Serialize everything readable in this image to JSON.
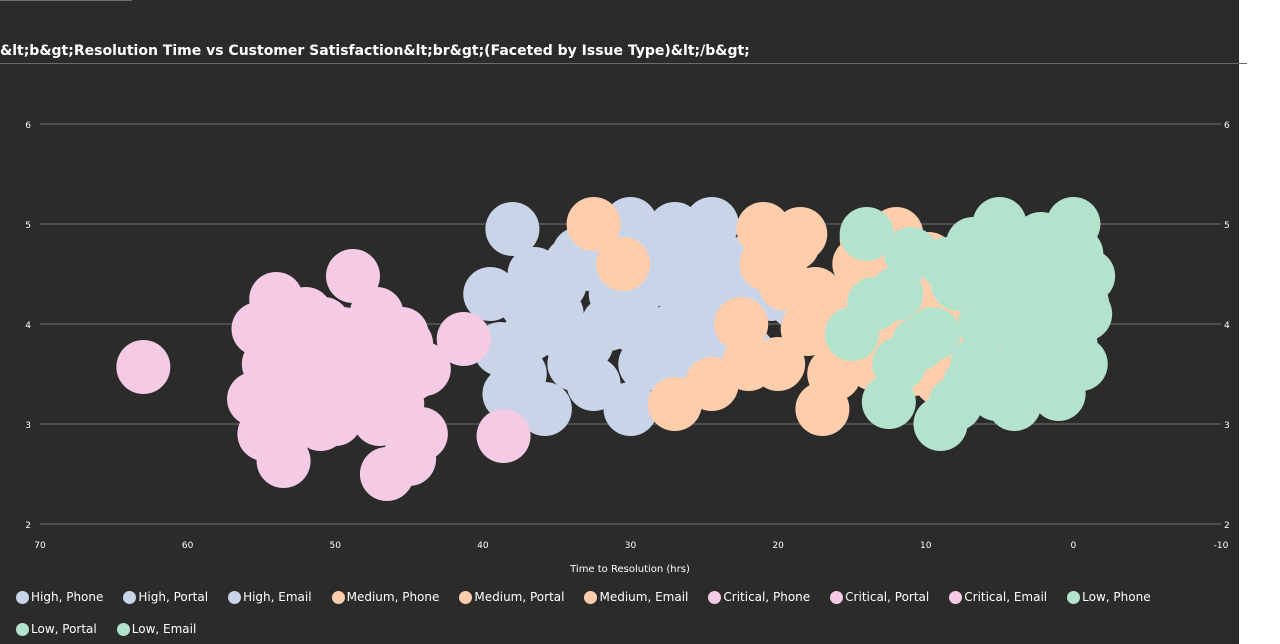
{
  "chart_data": {
    "type": "scatter",
    "title": "&lt;b&gt;Resolution Time vs Customer Satisfaction&lt;br&gt;(Faceted by Issue Type)&lt;/b&gt;",
    "xlabel": "Time to Resolution (hrs)",
    "ylabel": "",
    "xlim": [
      70,
      -10
    ],
    "ylim": [
      2,
      6
    ],
    "x_reversed": true,
    "x_ticks": [
      "70",
      "60",
      "50",
      "40",
      "30",
      "20",
      "10",
      "0",
      "-10"
    ],
    "y_ticks": [
      "2",
      "3",
      "4",
      "5",
      "6"
    ],
    "y_axis_mirrored_right": true,
    "grid": "horizontal",
    "legend_position": "bottom",
    "series": [
      {
        "name": "High, Phone",
        "color": "#c9d4e8",
        "points": [
          [
            38.0,
            4.95
          ],
          [
            36.5,
            4.5
          ],
          [
            35.0,
            4.1
          ],
          [
            33.0,
            3.8
          ],
          [
            31.0,
            4.3
          ],
          [
            29.0,
            3.6
          ],
          [
            27.0,
            4.4
          ],
          [
            25.0,
            4.0
          ],
          [
            23.5,
            3.7
          ],
          [
            37.5,
            3.5
          ],
          [
            34.0,
            4.6
          ],
          [
            30.0,
            4.0
          ],
          [
            26.0,
            3.9
          ],
          [
            22.5,
            4.3
          ],
          [
            32.5,
            3.4
          ]
        ]
      },
      {
        "name": "High, Portal",
        "color": "#c9d4e8",
        "points": [
          [
            38.2,
            3.3
          ],
          [
            35.8,
            3.15
          ],
          [
            33.5,
            4.7
          ],
          [
            31.5,
            4.0
          ],
          [
            30.0,
            5.0
          ],
          [
            28.5,
            4.6
          ],
          [
            26.5,
            3.5
          ],
          [
            24.5,
            5.0
          ],
          [
            23.0,
            4.6
          ],
          [
            37.0,
            4.2
          ],
          [
            34.5,
            3.9
          ],
          [
            29.5,
            4.35
          ],
          [
            27.5,
            3.75
          ],
          [
            25.5,
            4.55
          ],
          [
            22.8,
            3.9
          ]
        ]
      },
      {
        "name": "High, Email",
        "color": "#c9d4e8",
        "points": [
          [
            39.5,
            4.3
          ],
          [
            36.8,
            3.9
          ],
          [
            34.8,
            4.4
          ],
          [
            32.8,
            4.6
          ],
          [
            30.0,
            3.15
          ],
          [
            29.0,
            4.5
          ],
          [
            27.0,
            4.95
          ],
          [
            25.8,
            4.2
          ],
          [
            24.0,
            4.5
          ],
          [
            22.0,
            3.7
          ],
          [
            20.5,
            4.3
          ],
          [
            18.8,
            4.22
          ],
          [
            38.8,
            3.75
          ],
          [
            33.8,
            3.6
          ],
          [
            28.0,
            3.9
          ]
        ]
      },
      {
        "name": "Medium, Phone",
        "color": "#fdcdac",
        "points": [
          [
            21.0,
            4.95
          ],
          [
            19.0,
            4.8
          ],
          [
            17.5,
            4.3
          ],
          [
            16.0,
            3.9
          ],
          [
            14.5,
            4.6
          ],
          [
            13.0,
            4.0
          ],
          [
            11.5,
            3.7
          ],
          [
            10.0,
            4.4
          ],
          [
            8.5,
            3.9
          ],
          [
            20.0,
            3.6
          ],
          [
            18.0,
            3.95
          ],
          [
            15.5,
            4.2
          ],
          [
            13.5,
            3.6
          ],
          [
            12.0,
            4.9
          ],
          [
            9.5,
            4.1
          ]
        ]
      },
      {
        "name": "Medium, Portal",
        "color": "#fdcdac",
        "points": [
          [
            32.5,
            5.0
          ],
          [
            30.5,
            4.6
          ],
          [
            27.0,
            3.2
          ],
          [
            24.5,
            3.4
          ],
          [
            22.0,
            3.6
          ],
          [
            19.5,
            4.4
          ],
          [
            17.0,
            3.15
          ],
          [
            15.0,
            3.7
          ],
          [
            12.5,
            4.3
          ],
          [
            10.5,
            3.9
          ],
          [
            9.0,
            3.45
          ],
          [
            7.0,
            4.6
          ],
          [
            5.0,
            4.0
          ],
          [
            3.8,
            3.6
          ],
          [
            4.0,
            4.0
          ]
        ]
      },
      {
        "name": "Medium, Email",
        "color": "#fdcdac",
        "points": [
          [
            20.8,
            4.6
          ],
          [
            18.5,
            4.9
          ],
          [
            16.8,
            4.1
          ],
          [
            14.0,
            4.85
          ],
          [
            12.8,
            4.4
          ],
          [
            11.0,
            4.0
          ],
          [
            9.8,
            4.65
          ],
          [
            8.2,
            4.2
          ],
          [
            7.5,
            3.8
          ],
          [
            6.0,
            3.6
          ],
          [
            22.5,
            4.0
          ],
          [
            16.2,
            3.5
          ],
          [
            13.8,
            3.95
          ],
          [
            10.8,
            3.55
          ],
          [
            7.8,
            4.5
          ]
        ]
      },
      {
        "name": "Critical, Phone",
        "color": "#f4cae4",
        "points": [
          [
            63.0,
            3.57
          ],
          [
            55.2,
            3.95
          ],
          [
            54.5,
            3.6
          ],
          [
            53.5,
            2.63
          ],
          [
            52.0,
            4.1
          ],
          [
            50.5,
            3.5
          ],
          [
            49.0,
            3.2
          ],
          [
            47.5,
            3.95
          ],
          [
            46.5,
            2.5
          ],
          [
            45.0,
            2.65
          ],
          [
            44.0,
            3.55
          ],
          [
            55.5,
            3.25
          ],
          [
            51.5,
            3.3
          ],
          [
            48.0,
            3.6
          ],
          [
            46.0,
            3.3
          ]
        ]
      },
      {
        "name": "Critical, Portal",
        "color": "#f4cae4",
        "points": [
          [
            54.8,
            2.9
          ],
          [
            52.8,
            3.75
          ],
          [
            51.0,
            3.0
          ],
          [
            49.5,
            3.9
          ],
          [
            48.8,
            4.48
          ],
          [
            47.2,
            4.1
          ],
          [
            45.8,
            3.2
          ],
          [
            44.2,
            2.9
          ],
          [
            41.3,
            3.85
          ],
          [
            38.6,
            2.88
          ],
          [
            53.8,
            3.45
          ],
          [
            50.2,
            3.7
          ],
          [
            47.8,
            3.35
          ],
          [
            46.8,
            3.7
          ],
          [
            50.8,
            4.0
          ]
        ]
      },
      {
        "name": "Critical, Email",
        "color": "#f4cae4",
        "points": [
          [
            54.0,
            4.25
          ],
          [
            52.3,
            3.4
          ],
          [
            50.0,
            3.05
          ],
          [
            49.2,
            3.55
          ],
          [
            48.2,
            3.65
          ],
          [
            47.0,
            3.05
          ],
          [
            45.5,
            3.9
          ],
          [
            44.8,
            3.5
          ],
          [
            53.2,
            3.1
          ],
          [
            51.8,
            3.85
          ],
          [
            50.6,
            3.3
          ],
          [
            48.5,
            3.9
          ],
          [
            46.2,
            3.55
          ],
          [
            52.6,
            3.65
          ],
          [
            45.2,
            3.8
          ]
        ]
      },
      {
        "name": "Low, Phone",
        "color": "#b3e2cd",
        "points": [
          [
            5.0,
            5.0
          ],
          [
            0.0,
            5.0
          ],
          [
            2.5,
            4.6
          ],
          [
            -1.0,
            4.48
          ],
          [
            -0.5,
            3.6
          ],
          [
            4.0,
            3.2
          ],
          [
            9.0,
            3.0
          ],
          [
            12.5,
            3.22
          ],
          [
            7.0,
            3.4
          ],
          [
            1.5,
            3.9
          ],
          [
            3.5,
            4.2
          ],
          [
            0.5,
            4.2
          ],
          [
            6.0,
            4.0
          ],
          [
            2.0,
            3.5
          ],
          [
            -0.2,
            4.7
          ]
        ]
      },
      {
        "name": "Low, Portal",
        "color": "#b3e2cd",
        "points": [
          [
            14.0,
            4.9
          ],
          [
            11.0,
            4.7
          ],
          [
            8.0,
            3.2
          ],
          [
            6.5,
            3.6
          ],
          [
            5.5,
            4.4
          ],
          [
            4.5,
            4.8
          ],
          [
            3.0,
            3.95
          ],
          [
            1.0,
            3.3
          ],
          [
            -0.8,
            4.1
          ],
          [
            13.5,
            4.2
          ],
          [
            10.5,
            3.8
          ],
          [
            2.8,
            3.4
          ],
          [
            1.8,
            4.5
          ],
          [
            7.8,
            4.4
          ],
          [
            0.2,
            3.8
          ]
        ]
      },
      {
        "name": "Low, Email",
        "color": "#b3e2cd",
        "points": [
          [
            15.0,
            3.9
          ],
          [
            12.0,
            4.3
          ],
          [
            9.5,
            3.9
          ],
          [
            8.5,
            4.6
          ],
          [
            6.8,
            4.8
          ],
          [
            5.2,
            3.3
          ],
          [
            4.2,
            4.1
          ],
          [
            3.2,
            3.7
          ],
          [
            2.2,
            4.85
          ],
          [
            0.8,
            4.3
          ],
          [
            -0.6,
            4.2
          ],
          [
            11.8,
            3.6
          ],
          [
            3.6,
            4.6
          ],
          [
            1.2,
            3.6
          ],
          [
            5.8,
            3.5
          ]
        ]
      }
    ]
  }
}
